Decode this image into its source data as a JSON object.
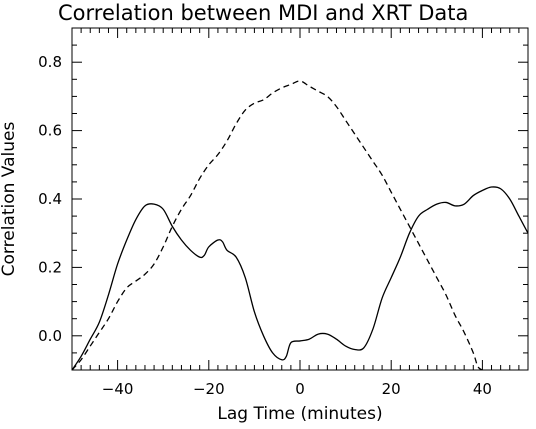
{
  "chart_data": {
    "type": "line",
    "title": "Correlation between MDI and XRT Data",
    "xlabel": "Lag Time (minutes)",
    "ylabel": "Correlation Values",
    "xlim": [
      -50,
      50
    ],
    "ylim": [
      -0.1,
      0.9
    ],
    "x_major_ticks": [
      -40,
      -20,
      0,
      20,
      40
    ],
    "x_tick_labels": [
      "−40",
      "−20",
      "0",
      "20",
      "40"
    ],
    "x_minor_step": 2,
    "y_major_ticks": [
      0.0,
      0.2,
      0.4,
      0.6,
      0.8
    ],
    "y_tick_labels": [
      "0.0",
      "0.2",
      "0.4",
      "0.6",
      "0.8"
    ],
    "y_minor_step": 0.05,
    "grid": false,
    "legend": "none",
    "series": [
      {
        "style": "solid",
        "color": "#000000",
        "points": [
          [
            -50,
            -0.1
          ],
          [
            -48,
            -0.06
          ],
          [
            -46,
            -0.01
          ],
          [
            -44,
            0.04
          ],
          [
            -42,
            0.12
          ],
          [
            -40,
            0.21
          ],
          [
            -38,
            0.28
          ],
          [
            -36,
            0.34
          ],
          [
            -34,
            0.38
          ],
          [
            -32,
            0.385
          ],
          [
            -30,
            0.37
          ],
          [
            -28,
            0.32
          ],
          [
            -26,
            0.28
          ],
          [
            -24,
            0.25
          ],
          [
            -22,
            0.23
          ],
          [
            -21,
            0.235
          ],
          [
            -20,
            0.26
          ],
          [
            -18,
            0.28
          ],
          [
            -17,
            0.275
          ],
          [
            -16,
            0.25
          ],
          [
            -14,
            0.23
          ],
          [
            -12,
            0.17
          ],
          [
            -10,
            0.07
          ],
          [
            -8,
            0.0
          ],
          [
            -6,
            -0.05
          ],
          [
            -4,
            -0.07
          ],
          [
            -3,
            -0.06
          ],
          [
            -2,
            -0.02
          ],
          [
            0,
            -0.015
          ],
          [
            2,
            -0.01
          ],
          [
            4,
            0.005
          ],
          [
            6,
            0.005
          ],
          [
            8,
            -0.01
          ],
          [
            10,
            -0.03
          ],
          [
            12,
            -0.04
          ],
          [
            14,
            -0.035
          ],
          [
            16,
            0.02
          ],
          [
            18,
            0.11
          ],
          [
            20,
            0.17
          ],
          [
            22,
            0.23
          ],
          [
            24,
            0.3
          ],
          [
            26,
            0.35
          ],
          [
            28,
            0.37
          ],
          [
            30,
            0.385
          ],
          [
            32,
            0.39
          ],
          [
            34,
            0.38
          ],
          [
            36,
            0.385
          ],
          [
            38,
            0.41
          ],
          [
            40,
            0.425
          ],
          [
            42,
            0.435
          ],
          [
            44,
            0.43
          ],
          [
            46,
            0.4
          ],
          [
            48,
            0.35
          ],
          [
            50,
            0.3
          ]
        ]
      },
      {
        "style": "dashed",
        "color": "#000000",
        "points": [
          [
            -50,
            -0.1
          ],
          [
            -48,
            -0.07
          ],
          [
            -46,
            -0.03
          ],
          [
            -44,
            0.01
          ],
          [
            -42,
            0.05
          ],
          [
            -40,
            0.1
          ],
          [
            -38,
            0.14
          ],
          [
            -36,
            0.16
          ],
          [
            -34,
            0.18
          ],
          [
            -32,
            0.21
          ],
          [
            -30,
            0.26
          ],
          [
            -28,
            0.32
          ],
          [
            -26,
            0.37
          ],
          [
            -24,
            0.41
          ],
          [
            -22,
            0.46
          ],
          [
            -20,
            0.5
          ],
          [
            -18,
            0.53
          ],
          [
            -16,
            0.57
          ],
          [
            -14,
            0.62
          ],
          [
            -12,
            0.66
          ],
          [
            -10,
            0.68
          ],
          [
            -8,
            0.69
          ],
          [
            -6,
            0.71
          ],
          [
            -4,
            0.725
          ],
          [
            -2,
            0.735
          ],
          [
            0,
            0.745
          ],
          [
            2,
            0.73
          ],
          [
            4,
            0.715
          ],
          [
            6,
            0.7
          ],
          [
            8,
            0.67
          ],
          [
            10,
            0.63
          ],
          [
            12,
            0.59
          ],
          [
            14,
            0.55
          ],
          [
            16,
            0.51
          ],
          [
            18,
            0.47
          ],
          [
            20,
            0.42
          ],
          [
            22,
            0.37
          ],
          [
            24,
            0.32
          ],
          [
            26,
            0.27
          ],
          [
            28,
            0.22
          ],
          [
            30,
            0.17
          ],
          [
            32,
            0.12
          ],
          [
            34,
            0.06
          ],
          [
            36,
            0.01
          ],
          [
            38,
            -0.05
          ],
          [
            39,
            -0.09
          ],
          [
            40,
            -0.1
          ]
        ]
      }
    ]
  }
}
